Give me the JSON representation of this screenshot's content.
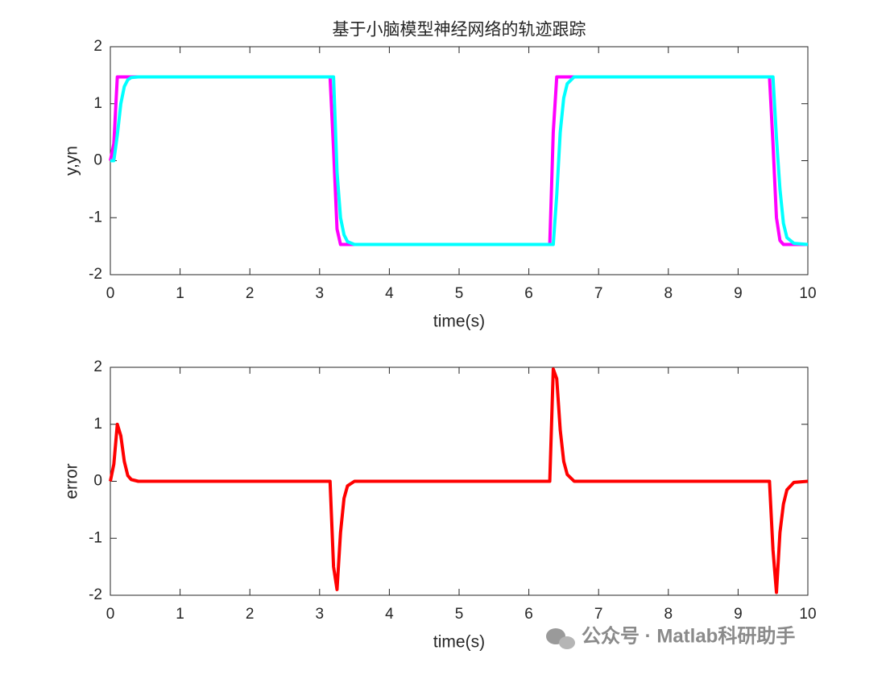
{
  "chart_data": [
    {
      "type": "line",
      "title": "基于小脑模型神经网络的轨迹跟踪",
      "xlabel": "time(s)",
      "ylabel": "y,yn",
      "x": [
        0,
        0.05,
        0.1,
        0.15,
        0.2,
        0.25,
        0.3,
        0.4,
        3.15,
        3.2,
        3.25,
        3.3,
        3.35,
        3.4,
        3.5,
        6.3,
        6.35,
        6.4,
        6.45,
        6.5,
        6.55,
        6.65,
        9.45,
        9.5,
        9.55,
        9.6,
        9.65,
        9.7,
        9.8,
        10
      ],
      "series": [
        {
          "color": "#ff00ff",
          "values": [
            0,
            0.3,
            1.47,
            1.47,
            1.47,
            1.47,
            1.47,
            1.47,
            1.47,
            0.2,
            -1.2,
            -1.47,
            -1.47,
            -1.47,
            -1.47,
            -1.47,
            0.5,
            1.47,
            1.47,
            1.47,
            1.47,
            1.47,
            1.47,
            0.3,
            -1.0,
            -1.4,
            -1.47,
            -1.47,
            -1.47,
            -1.47
          ]
        },
        {
          "color": "#00ffff",
          "values": [
            0,
            0,
            0.45,
            1.0,
            1.3,
            1.42,
            1.46,
            1.47,
            1.47,
            1.47,
            -0.2,
            -1.0,
            -1.3,
            -1.42,
            -1.47,
            -1.47,
            -1.47,
            -0.6,
            0.5,
            1.1,
            1.35,
            1.47,
            1.47,
            1.47,
            0.4,
            -0.5,
            -1.1,
            -1.35,
            -1.45,
            -1.47
          ]
        }
      ],
      "xlim": [
        0,
        10
      ],
      "xticks": [
        0,
        1,
        2,
        3,
        4,
        5,
        6,
        7,
        8,
        9,
        10
      ],
      "ylim": [
        -2,
        2
      ],
      "yticks": [
        -2,
        -1,
        0,
        1,
        2
      ]
    },
    {
      "type": "line",
      "xlabel": "time(s)",
      "ylabel": "error",
      "x": [
        0,
        0.05,
        0.1,
        0.15,
        0.2,
        0.25,
        0.3,
        0.4,
        3.15,
        3.2,
        3.25,
        3.3,
        3.35,
        3.4,
        3.5,
        6.3,
        6.35,
        6.4,
        6.45,
        6.5,
        6.55,
        6.65,
        9.45,
        9.5,
        9.55,
        9.6,
        9.65,
        9.7,
        9.8,
        10
      ],
      "series": [
        {
          "color": "#ff0000",
          "values": [
            0,
            0.3,
            1.0,
            0.8,
            0.35,
            0.1,
            0.03,
            0,
            0,
            -1.5,
            -1.9,
            -0.9,
            -0.3,
            -0.08,
            0,
            0,
            1.97,
            1.8,
            0.9,
            0.35,
            0.12,
            0,
            0,
            -1.2,
            -1.95,
            -0.9,
            -0.4,
            -0.15,
            -0.02,
            0
          ]
        }
      ],
      "xlim": [
        0,
        10
      ],
      "xticks": [
        0,
        1,
        2,
        3,
        4,
        5,
        6,
        7,
        8,
        9,
        10
      ],
      "ylim": [
        -2,
        2
      ],
      "yticks": [
        -2,
        -1,
        0,
        1,
        2
      ]
    }
  ],
  "watermark": "公众号 · Matlab科研助手"
}
